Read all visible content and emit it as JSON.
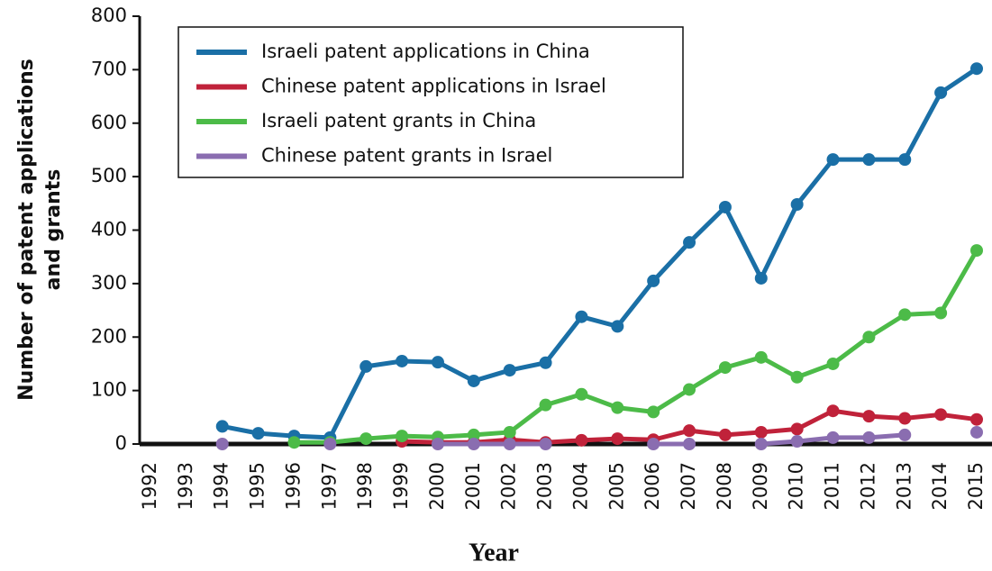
{
  "chart_data": {
    "type": "line",
    "ylabel": [
      "Number of patent applications",
      "and grants"
    ],
    "xlabel": "Year",
    "categories": [
      "1992",
      "1993",
      "1994",
      "1995",
      "1996",
      "1997",
      "1998",
      "1999",
      "2000",
      "2001",
      "2002",
      "2003",
      "2004",
      "2005",
      "2006",
      "2007",
      "2008",
      "2009",
      "2010",
      "2011",
      "2012",
      "2013",
      "2014",
      "2015"
    ],
    "series": [
      {
        "name": "Israeli patent applications in China",
        "color": "#1a6fa6",
        "values": [
          null,
          null,
          33,
          20,
          15,
          12,
          145,
          155,
          153,
          118,
          138,
          152,
          238,
          220,
          305,
          377,
          443,
          310,
          448,
          532,
          532,
          532,
          657,
          702
        ]
      },
      {
        "name": "Chinese patent applications in Israel",
        "color": "#c0223a",
        "values": [
          null,
          null,
          null,
          null,
          null,
          null,
          null,
          5,
          3,
          3,
          8,
          3,
          7,
          10,
          8,
          25,
          17,
          22,
          28,
          62,
          52,
          48,
          55,
          46
        ]
      },
      {
        "name": "Israeli patent grants in China",
        "color": "#4cbb48",
        "values": [
          null,
          null,
          null,
          null,
          3,
          3,
          10,
          15,
          13,
          17,
          22,
          73,
          93,
          68,
          60,
          102,
          143,
          162,
          125,
          150,
          200,
          242,
          245,
          362
        ]
      },
      {
        "name": "Chinese patent grants in Israel",
        "color": "#8a6db0",
        "values": [
          null,
          null,
          0,
          null,
          null,
          0,
          null,
          null,
          0,
          0,
          0,
          0,
          null,
          null,
          0,
          0,
          null,
          0,
          5,
          12,
          12,
          17,
          null,
          22
        ]
      }
    ],
    "ylim": [
      0,
      800
    ],
    "yticks": [
      0,
      100,
      200,
      300,
      400,
      500,
      600,
      700,
      800
    ],
    "legend": "upper left"
  }
}
